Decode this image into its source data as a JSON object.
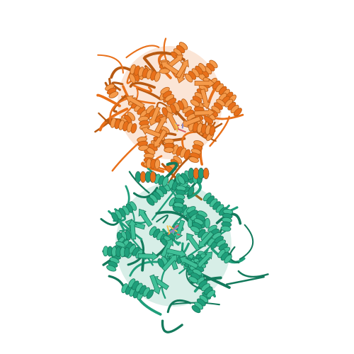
{
  "image": {
    "subject": "protein-ribbon-structure",
    "background": "#ffffff"
  },
  "chains": [
    {
      "id": "upper-chain",
      "color": "#e8701a",
      "shade": "#b85a12",
      "highlight": "#f59a4a"
    },
    {
      "id": "lower-chain",
      "color": "#1f9e7a",
      "shade": "#137a5c",
      "highlight": "#3fbf97"
    }
  ],
  "ligand": {
    "colors": [
      "#d95f5f",
      "#8a8acb",
      "#f2c14e"
    ]
  }
}
